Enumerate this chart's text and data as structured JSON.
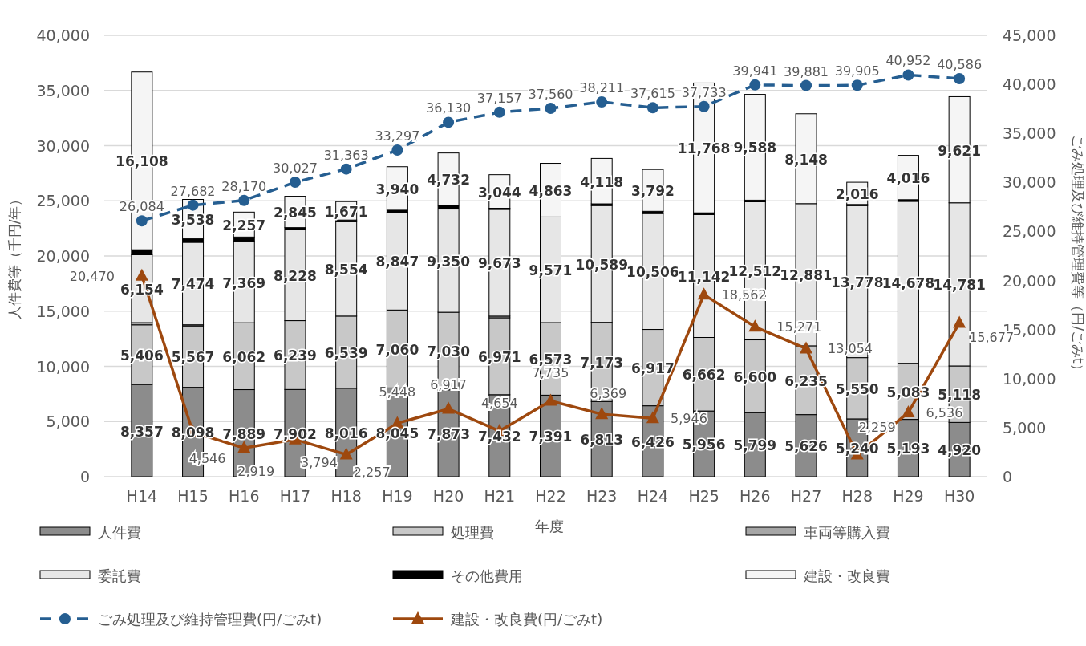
{
  "chart_data": {
    "type": "bar",
    "stacked": true,
    "xlabel": "年度",
    "ylabel": "人件費等（千円/年）",
    "y2label": "ごみ処理及び維持管理費等（円/ごみt）",
    "categories": [
      "H14",
      "H15",
      "H16",
      "H17",
      "H18",
      "H19",
      "H20",
      "H21",
      "H22",
      "H23",
      "H24",
      "H25",
      "H26",
      "H27",
      "H28",
      "H29",
      "H30"
    ],
    "ylim": [
      0,
      40000
    ],
    "yticks": [
      {
        "value": 0,
        "label": "0"
      },
      {
        "value": 5000,
        "label": "5,000"
      },
      {
        "value": 10000,
        "label": "10,000"
      },
      {
        "value": 15000,
        "label": "15,000"
      },
      {
        "value": 20000,
        "label": "20,000"
      },
      {
        "value": 25000,
        "label": "25,000"
      },
      {
        "value": 30000,
        "label": "30,000"
      },
      {
        "value": 35000,
        "label": "35,000"
      },
      {
        "value": 40000,
        "label": "40,000"
      }
    ],
    "y2lim": [
      0,
      45000
    ],
    "y2ticks": [
      {
        "value": 0,
        "label": "0"
      },
      {
        "value": 5000,
        "label": "5,000"
      },
      {
        "value": 10000,
        "label": "10,000"
      },
      {
        "value": 15000,
        "label": "15,000"
      },
      {
        "value": 20000,
        "label": "20,000"
      },
      {
        "value": 25000,
        "label": "25,000"
      },
      {
        "value": 30000,
        "label": "30,000"
      },
      {
        "value": 35000,
        "label": "35,000"
      },
      {
        "value": 40000,
        "label": "40,000"
      },
      {
        "value": 45000,
        "label": "45,000"
      }
    ],
    "grid": "y",
    "legend": "bottom",
    "series": [
      {
        "name": "人件費",
        "color": "#8c8c8c",
        "values": [
          8357,
          8098,
          7889,
          7902,
          8016,
          8045,
          7873,
          7432,
          7391,
          6813,
          6426,
          5956,
          5799,
          5626,
          5240,
          5193,
          4920
        ],
        "value_labels": [
          "8,357",
          "8,098",
          "7,889",
          "7,902",
          "8,016",
          "8,045",
          "7,873",
          "7,432",
          "7,391",
          "6,813",
          "6,426",
          "5,956",
          "5,799",
          "5,626",
          "5,240",
          "5,193",
          "4,920"
        ]
      },
      {
        "name": "処理費",
        "color": "#c8c8c8",
        "values": [
          5406,
          5567,
          6062,
          6239,
          6539,
          7060,
          7030,
          6971,
          6573,
          7173,
          6917,
          6662,
          6600,
          6235,
          5550,
          5083,
          5118
        ],
        "value_labels": [
          "5,406",
          "5,567",
          "6,062",
          "6,239",
          "6,539",
          "7,060",
          "7,030",
          "6,971",
          "6,573",
          "7,173",
          "6,917",
          "6,662",
          "6,600",
          "6,235",
          "5,550",
          "5,083",
          "5,118"
        ]
      },
      {
        "name": "車両等購入費",
        "color": "#a6a6a6",
        "values": [
          200,
          100,
          0,
          0,
          0,
          0,
          0,
          150,
          0,
          0,
          0,
          0,
          0,
          0,
          0,
          0,
          0
        ]
      },
      {
        "name": "委託費",
        "color": "#e6e6e6",
        "values": [
          6154,
          7474,
          7369,
          8228,
          8554,
          8847,
          9350,
          9673,
          9571,
          10589,
          10506,
          11142,
          12512,
          12881,
          13778,
          14678,
          14781
        ],
        "value_labels": [
          "6,154",
          "7,474",
          "7,369",
          "8,228",
          "8,554",
          "8,847",
          "9,350",
          "9,673",
          "9,571",
          "10,589",
          "10,506",
          "11,142",
          "12,512",
          "12,881",
          "13,778",
          "14,678",
          "14,781"
        ]
      },
      {
        "name": "その他費用",
        "color": "#000000",
        "values": [
          450,
          350,
          400,
          200,
          150,
          200,
          350,
          100,
          null,
          150,
          200,
          150,
          150,
          null,
          100,
          150,
          null
        ]
      },
      {
        "name": "建設・改良費",
        "color": "#f5f5f5",
        "values": [
          16108,
          3538,
          2257,
          2845,
          1671,
          3940,
          4732,
          3044,
          4863,
          4118,
          3792,
          11768,
          9588,
          8148,
          2016,
          4016,
          9621
        ],
        "value_labels": [
          "16,108",
          "3,538",
          "2,257",
          "2,845",
          "1,671",
          "3,940",
          "4,732",
          "3,044",
          "4,863",
          "4,118",
          "3,792",
          "11,768",
          "9,588",
          "8,148",
          "2,016",
          "4,016",
          "9,621"
        ]
      },
      {
        "name": "ごみ処理及び維持管理費(円/ごみt)",
        "type": "line",
        "axis": "y2",
        "color": "#255e91",
        "marker": "circle",
        "line_style": "dashed",
        "values": [
          26084,
          27682,
          28170,
          30027,
          31363,
          33297,
          36130,
          37157,
          37560,
          38211,
          37615,
          37733,
          39941,
          39881,
          39905,
          40952,
          40586
        ],
        "value_labels": [
          "26,084",
          "27,682",
          "28,170",
          "30,027",
          "31,363",
          "33,297",
          "36,130",
          "37,157",
          "37,560",
          "38,211",
          "37,615",
          "37,733",
          "39,941",
          "39,881",
          "39,905",
          "40,952",
          "40,586"
        ]
      },
      {
        "name": "建設・改良費(円/ごみt)",
        "type": "line",
        "axis": "y2",
        "color": "#9e480e",
        "marker": "triangle",
        "line_style": "solid",
        "values": [
          20470,
          4546,
          2919,
          3794,
          2257,
          5448,
          6917,
          4654,
          7735,
          6369,
          5946,
          18562,
          15271,
          13054,
          2259,
          6536,
          15677
        ],
        "value_labels": [
          "20,470",
          "4,546",
          "2,919",
          "3,794",
          "2,257",
          "5,448",
          "6,917",
          "4,654",
          "7,735",
          "6,369",
          "5,946",
          "18,562",
          "15,271",
          "13,054",
          "2,259",
          "6,536",
          "15,677"
        ]
      }
    ]
  }
}
